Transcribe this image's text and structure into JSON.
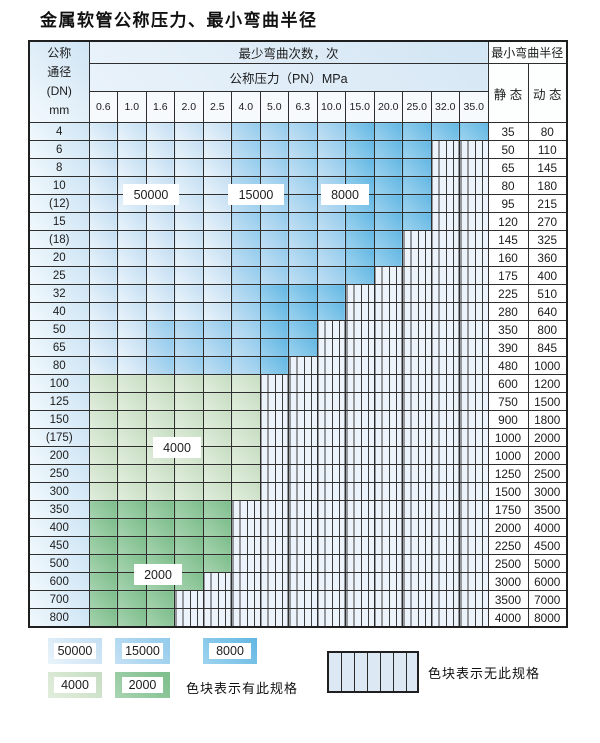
{
  "title": "金属软管公称压力、最小弯曲半径",
  "table": {
    "corner_header_lines": [
      "公称",
      "通径",
      "(DN)",
      "mm"
    ],
    "bend_cycles_header": "最少弯曲次数，次",
    "pressure_header": "公称压力（PN）MPa",
    "radius_header": "最小弯曲半径",
    "static_header": "静 态",
    "dynamic_header": "动 态",
    "pressure_columns": [
      "0.6",
      "1.0",
      "1.6",
      "2.0",
      "2.5",
      "4.0",
      "5.0",
      "6.3",
      "10.0",
      "15.0",
      "20.0",
      "25.0",
      "32.0",
      "35.0"
    ],
    "rows": [
      {
        "dn": "4",
        "static": "35",
        "dynamic": "80",
        "spans": [
          [
            "50000",
            5
          ],
          [
            "15000",
            4
          ],
          [
            "8000",
            5
          ]
        ]
      },
      {
        "dn": "6",
        "static": "50",
        "dynamic": "110",
        "spans": [
          [
            "50000",
            5
          ],
          [
            "15000",
            4
          ],
          [
            "8000",
            3
          ],
          [
            "none",
            2
          ]
        ]
      },
      {
        "dn": "8",
        "static": "65",
        "dynamic": "145",
        "spans": [
          [
            "50000",
            5
          ],
          [
            "15000",
            4
          ],
          [
            "8000",
            3
          ],
          [
            "none",
            2
          ]
        ]
      },
      {
        "dn": "10",
        "static": "80",
        "dynamic": "180",
        "spans": [
          [
            "50000",
            5
          ],
          [
            "15000",
            4
          ],
          [
            "8000",
            3
          ],
          [
            "none",
            2
          ]
        ]
      },
      {
        "dn": "(12)",
        "static": "95",
        "dynamic": "215",
        "spans": [
          [
            "50000",
            5
          ],
          [
            "15000",
            4
          ],
          [
            "8000",
            3
          ],
          [
            "none",
            2
          ]
        ]
      },
      {
        "dn": "15",
        "static": "120",
        "dynamic": "270",
        "spans": [
          [
            "50000",
            5
          ],
          [
            "15000",
            4
          ],
          [
            "8000",
            3
          ],
          [
            "none",
            2
          ]
        ]
      },
      {
        "dn": "(18)",
        "static": "145",
        "dynamic": "325",
        "spans": [
          [
            "50000",
            5
          ],
          [
            "15000",
            4
          ],
          [
            "8000",
            2
          ],
          [
            "none",
            3
          ]
        ]
      },
      {
        "dn": "20",
        "static": "160",
        "dynamic": "360",
        "spans": [
          [
            "50000",
            5
          ],
          [
            "15000",
            4
          ],
          [
            "8000",
            2
          ],
          [
            "none",
            3
          ]
        ]
      },
      {
        "dn": "25",
        "static": "175",
        "dynamic": "400",
        "spans": [
          [
            "50000",
            5
          ],
          [
            "15000",
            4
          ],
          [
            "8000",
            1
          ],
          [
            "none",
            4
          ]
        ]
      },
      {
        "dn": "32",
        "static": "225",
        "dynamic": "510",
        "spans": [
          [
            "50000",
            5
          ],
          [
            "15000",
            1
          ],
          [
            "8000",
            3
          ],
          [
            "none",
            5
          ]
        ]
      },
      {
        "dn": "40",
        "static": "280",
        "dynamic": "640",
        "spans": [
          [
            "50000",
            5
          ],
          [
            "15000",
            1
          ],
          [
            "8000",
            3
          ],
          [
            "none",
            5
          ]
        ]
      },
      {
        "dn": "50",
        "static": "350",
        "dynamic": "800",
        "spans": [
          [
            "50000",
            2
          ],
          [
            "15000",
            4
          ],
          [
            "8000",
            2
          ],
          [
            "none",
            6
          ]
        ]
      },
      {
        "dn": "65",
        "static": "390",
        "dynamic": "845",
        "spans": [
          [
            "50000",
            2
          ],
          [
            "15000",
            4
          ],
          [
            "8000",
            2
          ],
          [
            "none",
            6
          ]
        ]
      },
      {
        "dn": "80",
        "static": "480",
        "dynamic": "1000",
        "spans": [
          [
            "50000",
            2
          ],
          [
            "15000",
            4
          ],
          [
            "8000",
            1
          ],
          [
            "none",
            7
          ]
        ]
      },
      {
        "dn": "100",
        "static": "600",
        "dynamic": "1200",
        "spans": [
          [
            "4000",
            6
          ],
          [
            "none",
            8
          ]
        ]
      },
      {
        "dn": "125",
        "static": "750",
        "dynamic": "1500",
        "spans": [
          [
            "4000",
            6
          ],
          [
            "none",
            8
          ]
        ]
      },
      {
        "dn": "150",
        "static": "900",
        "dynamic": "1800",
        "spans": [
          [
            "4000",
            6
          ],
          [
            "none",
            8
          ]
        ]
      },
      {
        "dn": "(175)",
        "static": "1000",
        "dynamic": "2000",
        "spans": [
          [
            "4000",
            6
          ],
          [
            "none",
            8
          ]
        ]
      },
      {
        "dn": "200",
        "static": "1000",
        "dynamic": "2000",
        "spans": [
          [
            "4000",
            6
          ],
          [
            "none",
            8
          ]
        ]
      },
      {
        "dn": "250",
        "static": "1250",
        "dynamic": "2500",
        "spans": [
          [
            "4000",
            6
          ],
          [
            "none",
            8
          ]
        ]
      },
      {
        "dn": "300",
        "static": "1500",
        "dynamic": "3000",
        "spans": [
          [
            "4000",
            6
          ],
          [
            "none",
            8
          ]
        ]
      },
      {
        "dn": "350",
        "static": "1750",
        "dynamic": "3500",
        "spans": [
          [
            "2000",
            5
          ],
          [
            "none",
            9
          ]
        ]
      },
      {
        "dn": "400",
        "static": "2000",
        "dynamic": "4000",
        "spans": [
          [
            "2000",
            5
          ],
          [
            "none",
            9
          ]
        ]
      },
      {
        "dn": "450",
        "static": "2250",
        "dynamic": "4500",
        "spans": [
          [
            "2000",
            5
          ],
          [
            "none",
            9
          ]
        ]
      },
      {
        "dn": "500",
        "static": "2500",
        "dynamic": "5000",
        "spans": [
          [
            "2000",
            5
          ],
          [
            "none",
            9
          ]
        ]
      },
      {
        "dn": "600",
        "static": "3000",
        "dynamic": "6000",
        "spans": [
          [
            "2000",
            4
          ],
          [
            "none",
            10
          ]
        ]
      },
      {
        "dn": "700",
        "static": "3500",
        "dynamic": "7000",
        "spans": [
          [
            "2000",
            3
          ],
          [
            "none",
            11
          ]
        ]
      },
      {
        "dn": "800",
        "static": "4000",
        "dynamic": "8000",
        "spans": [
          [
            "2000",
            3
          ],
          [
            "none",
            11
          ]
        ]
      }
    ]
  },
  "overlay_labels": [
    {
      "text": "50000"
    },
    {
      "text": "15000"
    },
    {
      "text": "8000"
    },
    {
      "text": "4000"
    },
    {
      "text": "2000"
    }
  ],
  "legend": {
    "items": [
      {
        "label": "50000",
        "category": "50000"
      },
      {
        "label": "15000",
        "category": "15000"
      },
      {
        "label": "8000",
        "category": "8000"
      },
      {
        "label": "4000",
        "category": "4000"
      },
      {
        "label": "2000",
        "category": "2000"
      }
    ],
    "has_spec_text": "色块表示有此规格",
    "no_spec_text": "色块表示无此规格"
  },
  "colors": {
    "c50000": {
      "base": "#c3def2",
      "light": "#eaf4fb"
    },
    "c15000": {
      "base": "#92cbec",
      "light": "#c4e0f4"
    },
    "c8000": {
      "base": "#62b7e3",
      "light": "#9ed3ef"
    },
    "c4000": {
      "base": "#c6ddc2",
      "light": "#e2eedd"
    },
    "c2000": {
      "base": "#7cbd8b",
      "light": "#a8d4b0"
    },
    "hatch_bg": "#edf3fa",
    "grid": "#2e2e2e"
  }
}
